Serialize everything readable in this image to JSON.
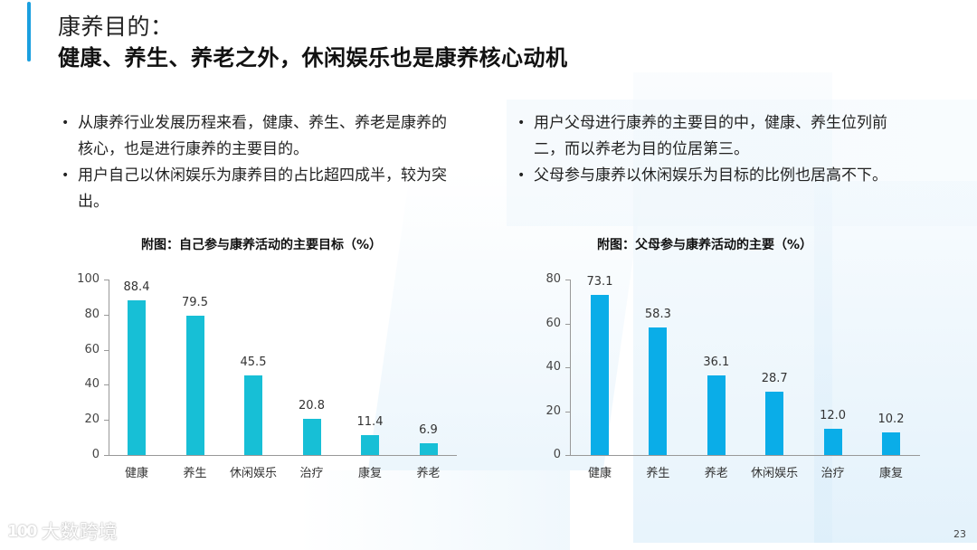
{
  "header": {
    "title_line1": "康养目的：",
    "title_line2": "健康、养生、养老之外，休闲娱乐也是康养核心动机"
  },
  "left_bullets": [
    "从康养行业发展历程来看，健康、养生、养老是康养的核心，也是进行康养的主要目的。",
    "用户自己以休闲娱乐为康养目的占比超四成半，较为突出。"
  ],
  "right_bullets": [
    "用户父母进行康养的主要目的中，健康、养生位列前二，而以养老为目的位居第三。",
    "父母参与康养以休闲娱乐为目标的比例也居高不下。"
  ],
  "footer": {
    "logo_mark": "100",
    "logo_text": "大数跨境",
    "page_number": "23"
  },
  "colors": {
    "accent": "#1a9fdf",
    "left_bar": "#17bfd6",
    "right_bar": "#0aade8"
  },
  "chart_data": [
    {
      "type": "bar",
      "title": "附图：自己参与康养活动的主要目标（%）",
      "categories": [
        "健康",
        "养生",
        "休闲娱乐",
        "治疗",
        "康复",
        "养老"
      ],
      "values": [
        88.4,
        79.5,
        45.5,
        20.8,
        11.4,
        6.9
      ],
      "value_labels": [
        "88.4",
        "79.5",
        "45.5",
        "20.8",
        "11.4",
        "6.9"
      ],
      "xlabel": "",
      "ylabel": "",
      "ylim": [
        0,
        100
      ],
      "yticks": [
        "0",
        "20",
        "40",
        "60",
        "80",
        "100"
      ],
      "grid": false,
      "legend": null,
      "color": "#17bfd6"
    },
    {
      "type": "bar",
      "title": "附图：父母参与康养活动的主要（%）",
      "categories": [
        "健康",
        "养生",
        "养老",
        "休闲娱乐",
        "治疗",
        "康复"
      ],
      "values": [
        73.1,
        58.3,
        36.1,
        28.7,
        12.0,
        10.2
      ],
      "value_labels": [
        "73.1",
        "58.3",
        "36.1",
        "28.7",
        "12.0",
        "10.2"
      ],
      "xlabel": "",
      "ylabel": "",
      "ylim": [
        0,
        80
      ],
      "yticks": [
        "0",
        "20",
        "40",
        "60",
        "80"
      ],
      "grid": false,
      "legend": null,
      "color": "#0aade8"
    }
  ]
}
